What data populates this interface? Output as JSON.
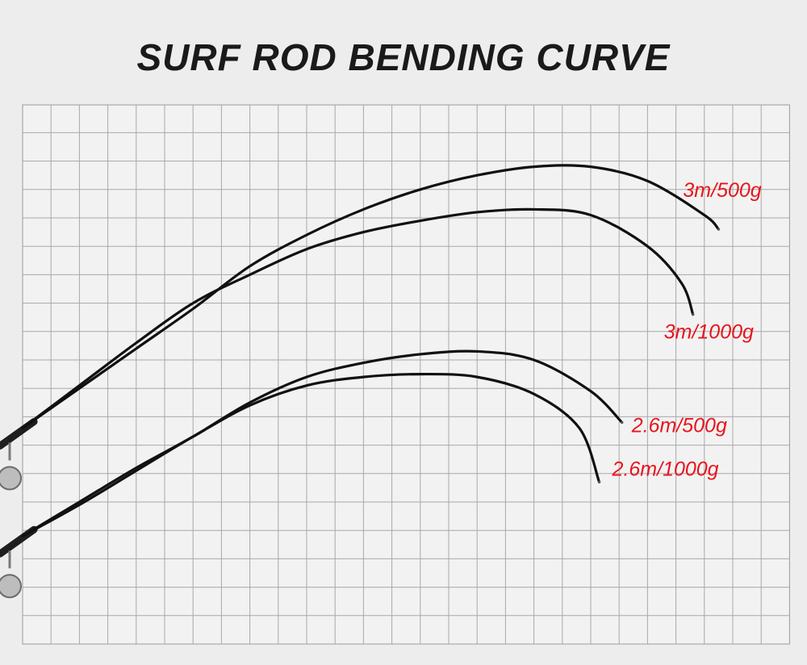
{
  "title": "SURF ROD BENDING CURVE",
  "chart_data": {
    "type": "line",
    "title": "SURF ROD BENDING CURVE",
    "xlabel": "",
    "ylabel": "",
    "grid": true,
    "legend": "inline labels at curve tips",
    "label_color": "#e8141c",
    "curve_color": "#111111",
    "series": [
      {
        "name": "3m/500g",
        "x": [
          0,
          2,
          4,
          6,
          8,
          10,
          12,
          14,
          16,
          18,
          20,
          22,
          24,
          24.5
        ],
        "y": [
          7.6,
          9.0,
          10.4,
          11.8,
          13.3,
          14.4,
          15.3,
          16.0,
          16.5,
          16.8,
          16.8,
          16.3,
          15.1,
          14.6
        ]
      },
      {
        "name": "3m/1000g",
        "x": [
          0,
          2,
          4,
          6,
          8,
          10,
          12,
          14,
          16,
          18,
          20,
          22,
          23.2,
          23.6
        ],
        "y": [
          7.6,
          9.1,
          10.6,
          12.0,
          13.0,
          13.9,
          14.5,
          14.9,
          15.2,
          15.3,
          15.1,
          14.0,
          12.7,
          11.6
        ]
      },
      {
        "name": "2.6m/500g",
        "x": [
          0,
          2,
          4,
          6,
          8,
          10,
          12,
          14,
          16,
          18,
          20,
          21.1
        ],
        "y": [
          3.8,
          5.0,
          6.2,
          7.3,
          8.5,
          9.4,
          9.9,
          10.2,
          10.3,
          10.0,
          8.9,
          7.8
        ]
      },
      {
        "name": "2.6m/1000g",
        "x": [
          0,
          2,
          4,
          6,
          8,
          10,
          12,
          14,
          16,
          18,
          19.6,
          20.3
        ],
        "y": [
          3.8,
          4.9,
          6.1,
          7.3,
          8.4,
          9.1,
          9.4,
          9.5,
          9.4,
          8.8,
          7.6,
          5.7
        ]
      }
    ]
  }
}
